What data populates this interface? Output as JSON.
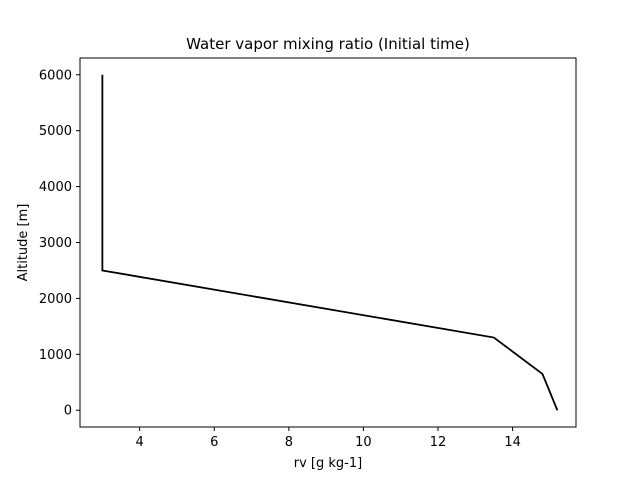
{
  "chart_data": {
    "type": "line",
    "title": "Water vapor mixing ratio (Initial time)",
    "xlabel": "rv [g kg-1]",
    "ylabel": "Altitude [m]",
    "xlim": [
      2.4,
      15.7
    ],
    "ylim": [
      -300,
      6300
    ],
    "xticks": [
      4,
      6,
      8,
      10,
      12,
      14
    ],
    "yticks": [
      0,
      1000,
      2000,
      3000,
      4000,
      5000,
      6000
    ],
    "xtick_labels": [
      "4",
      "6",
      "8",
      "10",
      "12",
      "14"
    ],
    "ytick_labels": [
      "0",
      "1000",
      "2000",
      "3000",
      "4000",
      "5000",
      "6000"
    ],
    "grid": false,
    "legend": "none",
    "series": [
      {
        "color": "#000000",
        "x": [
          15.2,
          14.8,
          13.5,
          3.0,
          3.0
        ],
        "y": [
          0,
          650,
          1300,
          2500,
          6000
        ]
      }
    ]
  }
}
